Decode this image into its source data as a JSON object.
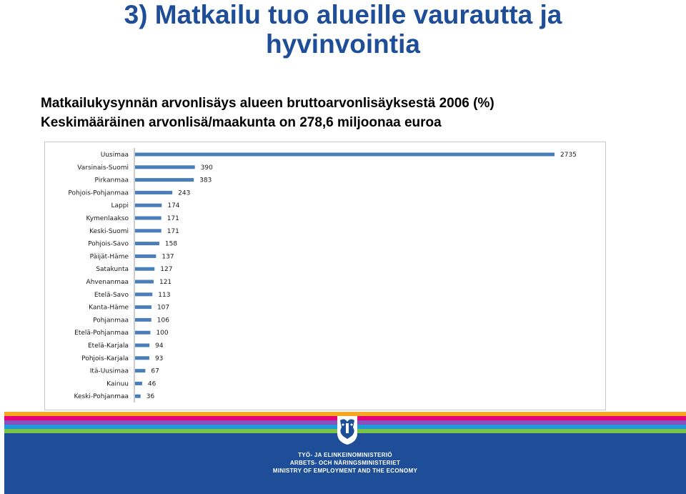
{
  "title": {
    "line1": "3) Matkailu tuo alueille vaurautta ja",
    "line2": "hyvinvointia"
  },
  "subtitle": {
    "line1": "Matkailukysynnän arvonlisäys alueen bruttoarvonlisäyksestä 2006 (%)",
    "line2": "Keskimääräinen arvonlisä/maakunta on 278,6 miljoonaa euroa"
  },
  "chart_data": {
    "type": "bar",
    "orientation": "horizontal",
    "categories": [
      "Uusimaa",
      "Varsinais-Suomi",
      "Pirkanmaa",
      "Pohjois-Pohjanmaa",
      "Lappi",
      "Kymenlaakso",
      "Keski-Suomi",
      "Pohjois-Savo",
      "Päijät-Häme",
      "Satakunta",
      "Ahvenanmaa",
      "Etelä-Savo",
      "Kanta-Häme",
      "Pohjanmaa",
      "Etelä-Pohjanmaa",
      "Etelä-Karjala",
      "Pohjois-Karjala",
      "Itä-Uusimaa",
      "Kainuu",
      "Keski-Pohjanmaa"
    ],
    "values": [
      2735,
      390,
      383,
      243,
      174,
      171,
      171,
      158,
      137,
      127,
      121,
      113,
      107,
      106,
      100,
      94,
      93,
      67,
      46,
      36
    ],
    "data_labels": [
      "2735",
      "390",
      "383",
      "243",
      "174",
      "171",
      "171",
      "158",
      "137",
      "127",
      "121",
      "113",
      "107",
      "106",
      "100",
      "94",
      "93",
      "67",
      "46",
      "36"
    ],
    "xlim": [
      0,
      2735
    ],
    "bar_color": "#4a7ebb",
    "grid": false,
    "legend": "none"
  },
  "footer": {
    "ministry_fi": "TYÖ- JA ELINKEINOMINISTERIÖ",
    "ministry_sv": "ARBETS- OCH NÄRINGSMINISTERIET",
    "ministry_en": "MINISTRY OF EMPLOYMENT AND THE ECONOMY",
    "logo_icon": "lion-coat-of-arms-icon",
    "background_color": "#1f4e99",
    "stripe_colors": [
      "#f5a623",
      "#e3007a",
      "#8a4fbf",
      "#1f9bd7",
      "#7bc24a"
    ]
  }
}
